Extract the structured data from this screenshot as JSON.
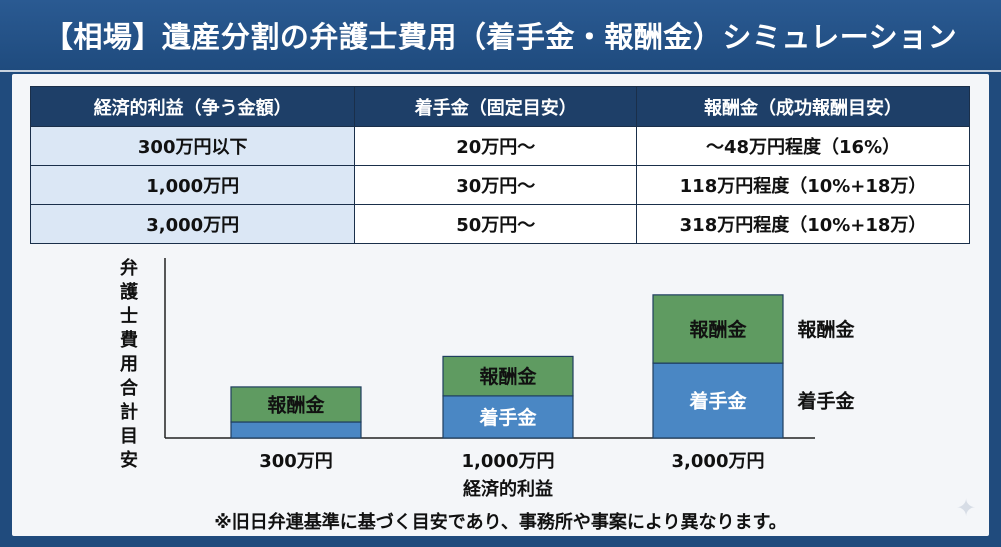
{
  "title": "【相場】遺産分割の弁護士費用（着手金・報酬金）シミュレーション",
  "table": {
    "headers": [
      "経済的利益（争う金額）",
      "着手金（固定目安）",
      "報酬金（成功報酬目安）"
    ],
    "rows": [
      [
        "300万円以下",
        "20万円〜",
        "〜48万円程度（16%）"
      ],
      [
        "1,000万円",
        "30万円〜",
        "118万円程度（10%+18万）"
      ],
      [
        "3,000万円",
        "50万円〜",
        "318万円程度（10%+18万）"
      ]
    ]
  },
  "chart_data": {
    "type": "bar",
    "stacked": true,
    "categories": [
      "300万円",
      "1,000万円",
      "3,000万円"
    ],
    "series": [
      {
        "name": "着手金",
        "values": [
          20,
          30,
          50
        ],
        "color": "#4a87c4",
        "labels": [
          "",
          "着手金",
          "着手金"
        ]
      },
      {
        "name": "報酬金",
        "values": [
          48,
          118,
          318
        ],
        "color": "#5f9b61",
        "labels": [
          "報酬金",
          "報酬金",
          "報酬金"
        ]
      }
    ],
    "xlabel": "経済的利益",
    "ylabel": "弁護士費用合計目安",
    "legend": [
      "報酬金",
      "着手金"
    ],
    "grid": false,
    "y_scale": "not to scale (illustrative)"
  },
  "footnote": "※旧日弁連基準に基づく目安であり、事務所や事案により異なります。",
  "colors": {
    "header_bg": "#1e3f68",
    "title_bg": "#204b7d",
    "first_col_bg": "#dbe7f5"
  }
}
